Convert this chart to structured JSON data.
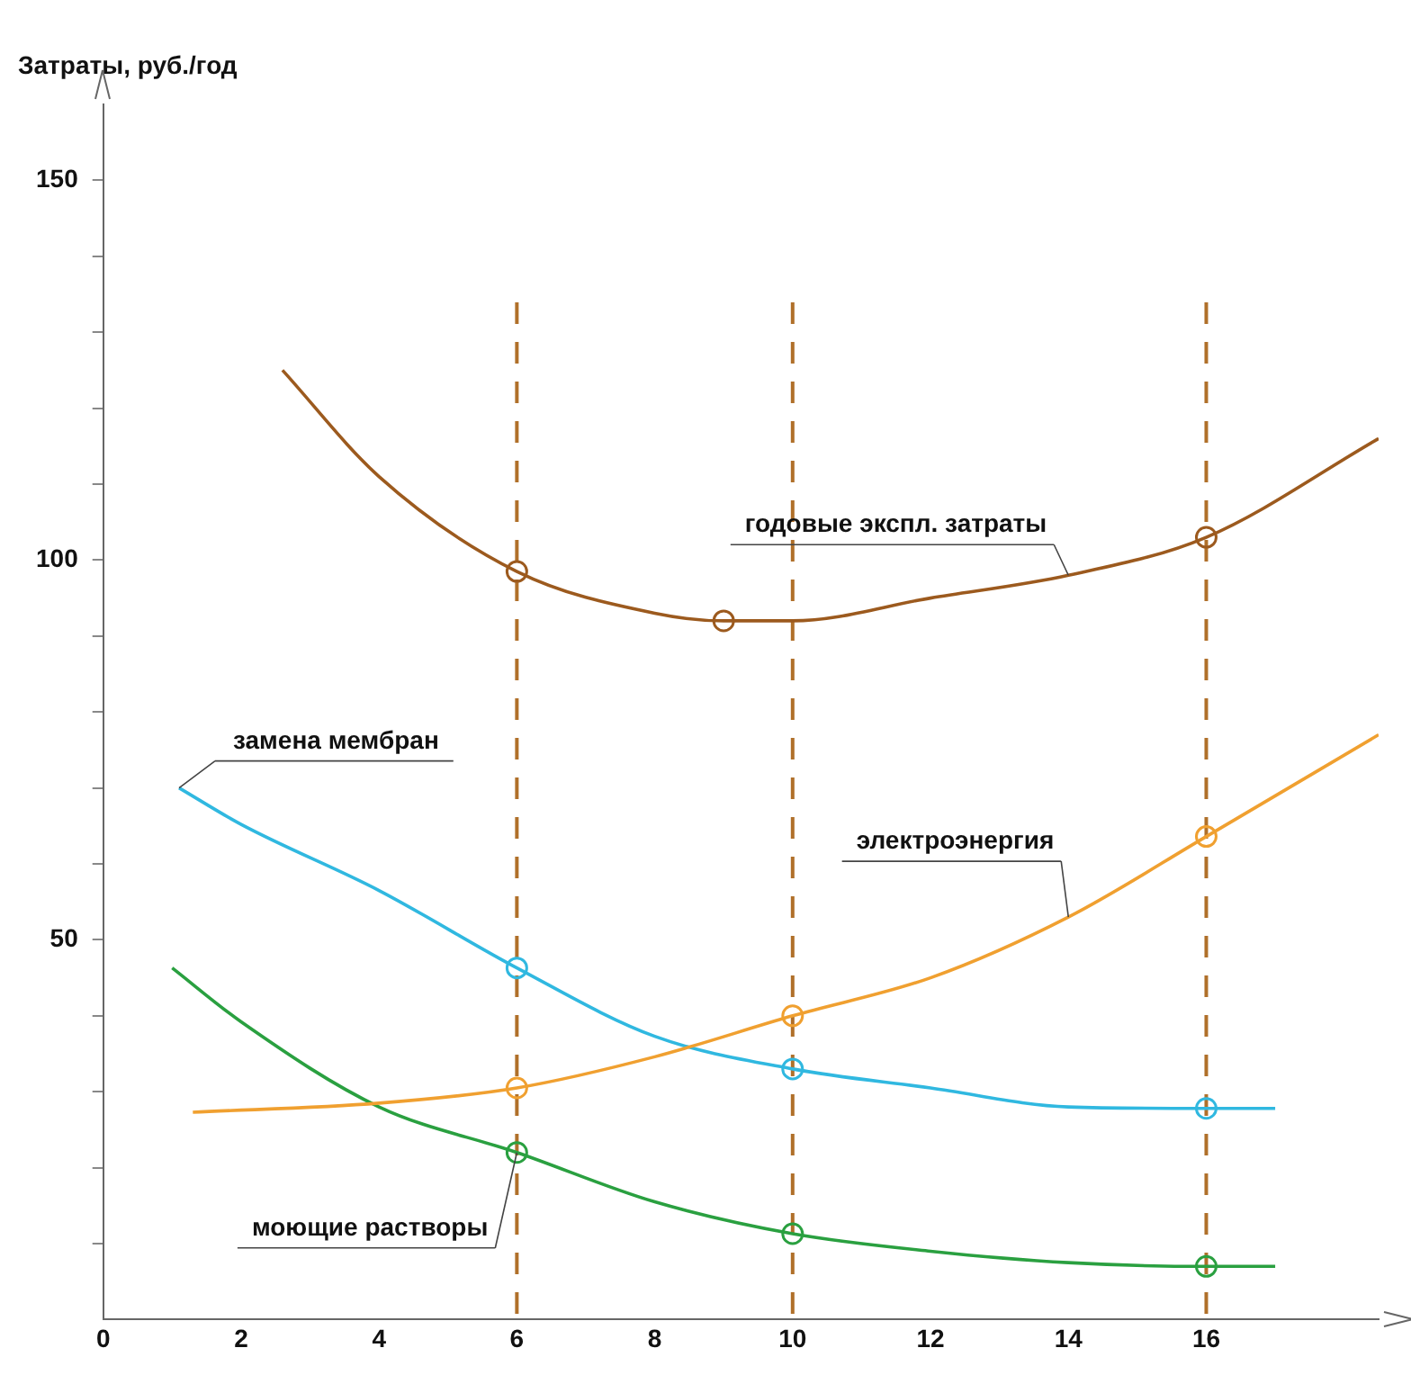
{
  "chart_data": {
    "type": "line",
    "ylabel": "Затраты, руб./год",
    "xlim": [
      0,
      18.5
    ],
    "xticks": [
      0,
      2,
      4,
      6,
      8,
      10,
      12,
      14,
      16
    ],
    "ylim": [
      0,
      160
    ],
    "yticks": [
      {
        "value": 10,
        "label": null
      },
      {
        "value": 20,
        "label": null
      },
      {
        "value": 30,
        "label": null
      },
      {
        "value": 40,
        "label": null
      },
      50,
      {
        "value": 60,
        "label": null
      },
      {
        "value": 70,
        "label": null
      },
      {
        "value": 80,
        "label": null
      },
      {
        "value": 90,
        "label": null
      },
      100,
      {
        "value": 110,
        "label": null
      },
      {
        "value": 120,
        "label": null
      },
      {
        "value": 130,
        "label": null
      },
      {
        "value": 140,
        "label": null
      },
      150
    ],
    "grid": false,
    "legend": false,
    "line_style": "solid",
    "series": [
      {
        "name": "годовые экспл. затраты",
        "color": "#9c5a1e",
        "x": [
          2.6,
          4,
          6,
          8,
          9,
          10,
          12,
          14,
          16,
          18.5
        ],
        "values": [
          125,
          111,
          98.5,
          93,
          92,
          92,
          95,
          98,
          103,
          116
        ]
      },
      {
        "name": "электроэнергия",
        "color": "#f0a030",
        "x": [
          1.3,
          4,
          6,
          8,
          10,
          12,
          14,
          16,
          18.5
        ],
        "values": [
          27.3,
          28.5,
          30.5,
          34.6,
          40,
          45,
          53,
          63.6,
          77
        ]
      },
      {
        "name": "замена мембран",
        "color": "#30b8e0",
        "x": [
          1.1,
          2,
          4,
          6,
          8,
          10,
          12,
          14,
          16,
          17
        ],
        "values": [
          70,
          65.2,
          56.5,
          46.3,
          37.3,
          33,
          30.5,
          28,
          27.8,
          27.8
        ]
      },
      {
        "name": "моющие растворы",
        "color": "#2aa040",
        "x": [
          1,
          2,
          4,
          6,
          8,
          10,
          12,
          14,
          16,
          17
        ],
        "values": [
          46.3,
          39.2,
          28,
          22,
          15.5,
          11.3,
          9,
          7.5,
          7,
          7
        ]
      },
      {
        "type": "scatter",
        "marker": "circle",
        "color": "#9c5a1e",
        "x": [
          6,
          9,
          16
        ],
        "values": [
          98.5,
          92,
          103
        ]
      },
      {
        "type": "scatter",
        "marker": "circle",
        "color": "#f0a030",
        "x": [
          6,
          10,
          16
        ],
        "values": [
          30.5,
          40,
          63.6
        ]
      },
      {
        "type": "scatter",
        "marker": "circle",
        "color": "#30b8e0",
        "x": [
          6,
          10,
          16
        ],
        "values": [
          46.3,
          33,
          27.8
        ]
      },
      {
        "type": "scatter",
        "marker": "circle",
        "color": "#2aa040",
        "x": [
          6,
          10,
          16
        ],
        "values": [
          22,
          11.3,
          7
        ]
      }
    ],
    "ref_lines": [
      {
        "axis": "x",
        "value": 6,
        "color": "#b0702a",
        "line_style": "dashed"
      },
      {
        "axis": "x",
        "value": 10,
        "color": "#b0702a",
        "line_style": "dashed"
      },
      {
        "axis": "x",
        "value": 16,
        "color": "#b0702a",
        "line_style": "dashed"
      }
    ]
  }
}
